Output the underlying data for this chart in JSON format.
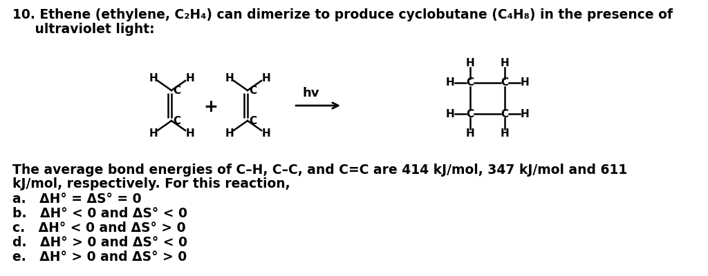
{
  "bg_color": "#ffffff",
  "figsize": [
    10.24,
    4.0
  ],
  "dpi": 100,
  "title_line1": "10. Ethene (ethylene, C₂H₄) can dimerize to produce cyclobutane (C₄H₈) in the presence of",
  "title_line2": "     ultraviolet light:",
  "body_text_1": "The average bond energies of C–H, C–C, and C=C are 414 kJ/mol, 347 kJ/mol and 611",
  "body_text_2": "kJ/mol, respectively. For this reaction,",
  "choices": [
    "a.   ΔH° = ΔS° = 0",
    "b.   ΔH° < 0 and ΔS° < 0",
    "c.   ΔH° < 0 and ΔS° > 0",
    "d.   ΔH° > 0 and ΔS° < 0",
    "e.   ΔH° > 0 and ΔS° > 0"
  ],
  "lw": 1.8,
  "fs_label": 11,
  "fs_text": 13.5,
  "fs_choice": 13.5
}
